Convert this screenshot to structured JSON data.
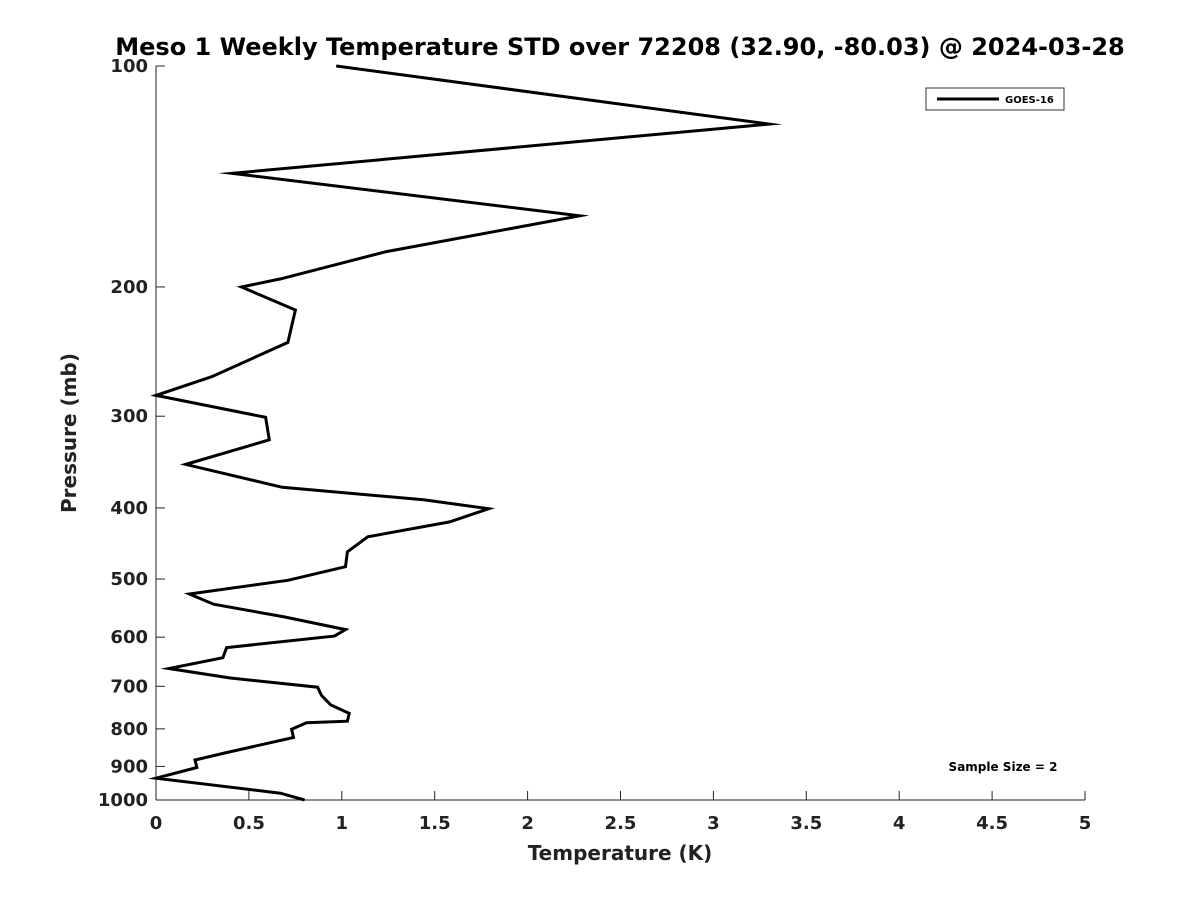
{
  "chart_data": {
    "type": "line",
    "title": "Meso 1 Weekly Temperature STD over 72208 (32.90, -80.03) @ 2024-03-28",
    "xlabel": "Temperature (K)",
    "ylabel": "Pressure (mb)",
    "xlim": [
      0,
      5
    ],
    "ylim": [
      100,
      1000
    ],
    "y_scale": "log",
    "y_reversed": true,
    "x_ticks": [
      "0",
      "0.5",
      "1",
      "1.5",
      "2",
      "2.5",
      "3",
      "3.5",
      "4",
      "4.5",
      "5"
    ],
    "x_tick_values": [
      0,
      0.5,
      1,
      1.5,
      2,
      2.5,
      3,
      3.5,
      4,
      4.5,
      5
    ],
    "y_ticks": [
      "100",
      "200",
      "300",
      "400",
      "500",
      "600",
      "700",
      "800",
      "900",
      "1000"
    ],
    "y_tick_values": [
      100,
      200,
      300,
      400,
      500,
      600,
      700,
      800,
      900,
      1000
    ],
    "grid": false,
    "legend_position": "top-right",
    "annotation": "Sample Size = 2",
    "series": [
      {
        "name": "GOES-16",
        "color": "#000000",
        "points": [
          [
            0.97,
            100
          ],
          [
            3.3,
            120
          ],
          [
            0.41,
            140
          ],
          [
            2.28,
            160
          ],
          [
            1.24,
            179
          ],
          [
            0.67,
            195
          ],
          [
            0.46,
            200
          ],
          [
            0.75,
            215
          ],
          [
            0.71,
            238
          ],
          [
            0.3,
            265
          ],
          [
            0.0,
            281
          ],
          [
            0.59,
            301
          ],
          [
            0.61,
            323
          ],
          [
            0.16,
            349
          ],
          [
            0.68,
            375
          ],
          [
            1.44,
            390
          ],
          [
            1.79,
            401
          ],
          [
            1.58,
            418
          ],
          [
            1.14,
            438
          ],
          [
            1.03,
            459
          ],
          [
            1.02,
            481
          ],
          [
            0.71,
            502
          ],
          [
            0.18,
            524
          ],
          [
            0.31,
            541
          ],
          [
            0.69,
            563
          ],
          [
            1.02,
            586
          ],
          [
            0.96,
            598
          ],
          [
            0.38,
            620
          ],
          [
            0.36,
            640
          ],
          [
            0.07,
            662
          ],
          [
            0.4,
            682
          ],
          [
            0.87,
            702
          ],
          [
            0.89,
            720
          ],
          [
            0.94,
            742
          ],
          [
            1.04,
            762
          ],
          [
            1.03,
            781
          ],
          [
            0.81,
            785
          ],
          [
            0.73,
            801
          ],
          [
            0.74,
            822
          ],
          [
            0.37,
            863
          ],
          [
            0.21,
            882
          ],
          [
            0.22,
            903
          ],
          [
            0.0,
            934
          ],
          [
            0.67,
            979
          ],
          [
            0.8,
            1000
          ]
        ]
      }
    ]
  }
}
